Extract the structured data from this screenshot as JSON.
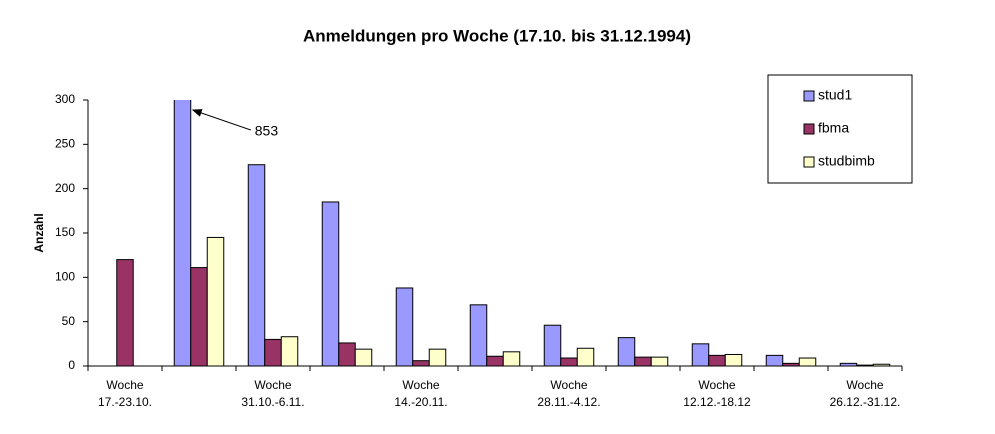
{
  "chart_data": {
    "type": "bar",
    "title": "Anmeldungen pro Woche (17.10. bis 31.12.1994)",
    "ylabel": "Anzahl",
    "categories": [
      [
        "Woche",
        "17.-23.10."
      ],
      null,
      [
        "Woche",
        "31.10.-6.11."
      ],
      null,
      [
        "Woche",
        "14.-20.11."
      ],
      null,
      [
        "Woche",
        "28.11.-4.12."
      ],
      null,
      [
        "Woche",
        "12.12.-18.12"
      ],
      null,
      [
        "Woche",
        "26.12.-31.12."
      ]
    ],
    "series": [
      {
        "name": "stud1",
        "color": "#9999ff",
        "values": [
          0,
          853,
          227,
          185,
          88,
          69,
          46,
          32,
          25,
          12,
          3
        ],
        "value_labels": [
          null,
          "853",
          null,
          null,
          null,
          null,
          null,
          null,
          null,
          null,
          null
        ]
      },
      {
        "name": "fbma",
        "color": "#993366",
        "values": [
          120,
          111,
          30,
          26,
          6,
          11,
          9,
          10,
          12,
          3,
          1
        ]
      },
      {
        "name": "studbimb",
        "color": "#ffffcc",
        "values": [
          0,
          145,
          33,
          19,
          19,
          16,
          20,
          10,
          13,
          9,
          2
        ]
      }
    ],
    "ylim": [
      0,
      300
    ],
    "yticks": [
      0,
      50,
      100,
      150,
      200,
      250,
      300
    ],
    "grid": false,
    "legend": "top-right"
  }
}
